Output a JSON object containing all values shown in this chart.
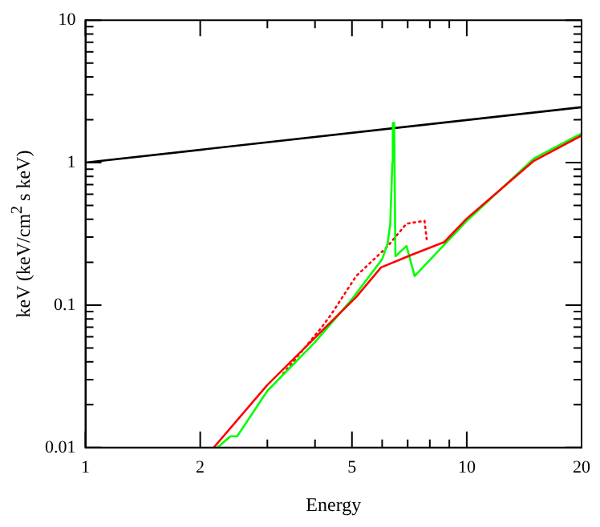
{
  "chart_data": {
    "type": "line",
    "xlabel": "Energy",
    "ylabel": "keV (keV/cm$^{2}$ s keV)",
    "log": "xy",
    "grid": false,
    "legend": false,
    "marker": "none",
    "xlim": [
      1,
      20
    ],
    "ylim": [
      0.01,
      10
    ],
    "xticks": [
      1,
      2,
      {
        "value": 3,
        "label": null
      },
      {
        "value": 4,
        "label": null
      },
      5,
      {
        "value": 6,
        "label": null
      },
      {
        "value": 7,
        "label": null
      },
      {
        "value": 8,
        "label": null
      },
      {
        "value": 9,
        "label": null
      },
      10,
      20
    ],
    "yticks": [
      0.01,
      {
        "value": 0.02,
        "label": null
      },
      {
        "value": 0.03,
        "label": null
      },
      {
        "value": 0.04,
        "label": null
      },
      {
        "value": 0.05,
        "label": null
      },
      {
        "value": 0.06,
        "label": null
      },
      {
        "value": 0.07,
        "label": null
      },
      {
        "value": 0.08,
        "label": null
      },
      {
        "value": 0.09,
        "label": null
      },
      0.1,
      {
        "value": 0.2,
        "label": null
      },
      {
        "value": 0.3,
        "label": null
      },
      {
        "value": 0.4,
        "label": null
      },
      {
        "value": 0.5,
        "label": null
      },
      {
        "value": 0.6,
        "label": null
      },
      {
        "value": 0.7,
        "label": null
      },
      {
        "value": 0.8,
        "label": null
      },
      {
        "value": 0.9,
        "label": null
      },
      1,
      {
        "value": 2,
        "label": null
      },
      {
        "value": 3,
        "label": null
      },
      {
        "value": 4,
        "label": null
      },
      {
        "value": 5,
        "label": null
      },
      {
        "value": 6,
        "label": null
      },
      {
        "value": 7,
        "label": null
      },
      {
        "value": 8,
        "label": null
      },
      {
        "value": 9,
        "label": null
      },
      10
    ],
    "series": [
      {
        "color": "#000000",
        "x": [
          1,
          20
        ],
        "values": [
          1,
          2.45
        ]
      },
      {
        "color": "#ff0000",
        "line_style": "dotted",
        "x": [
          3.3,
          4.15,
          4.41,
          5.13,
          6.17,
          6.95,
          7.75,
          7.85
        ],
        "values": [
          0.033,
          0.069,
          0.086,
          0.16,
          0.255,
          0.373,
          0.39,
          0.29
        ]
      },
      {
        "color": "#00ff00",
        "x": [
          2.22,
          2.4,
          2.5,
          3,
          4,
          5,
          6,
          6.2,
          6.3,
          6.38,
          6.4,
          6.45,
          6.5,
          6.95,
          7.3,
          10,
          15,
          20
        ],
        "values": [
          0.01,
          0.012,
          0.012,
          0.025,
          0.055,
          0.11,
          0.21,
          0.27,
          0.37,
          1.0,
          1.9,
          1.9,
          0.22,
          0.26,
          0.16,
          0.39,
          1.07,
          1.6
        ]
      },
      {
        "color": "#ff0000",
        "x": [
          2.17,
          3,
          4,
          5.13,
          5.96,
          7.16,
          8.73,
          10,
          15,
          20
        ],
        "values": [
          0.01,
          0.0275,
          0.059,
          0.114,
          0.184,
          0.225,
          0.277,
          0.405,
          1.03,
          1.55
        ]
      }
    ]
  }
}
